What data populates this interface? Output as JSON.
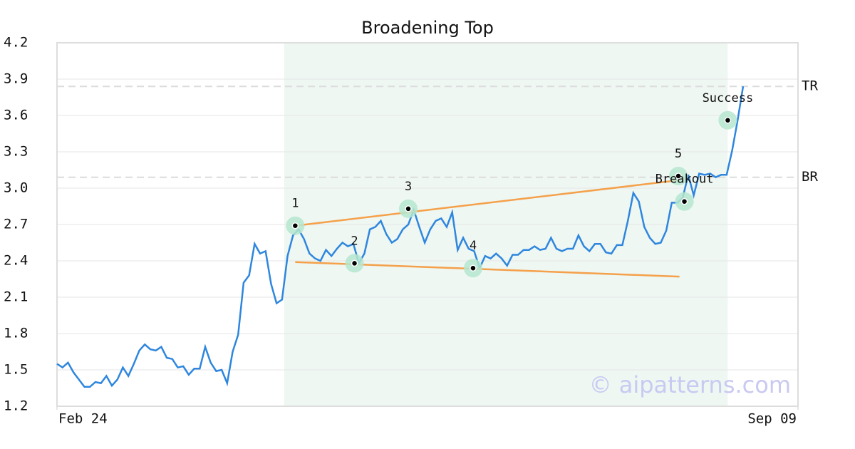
{
  "chart_data": {
    "type": "line",
    "title": "Broadening Top",
    "xlim": [
      0,
      135
    ],
    "xticks": [
      {
        "value": 0,
        "label": "Feb 24"
      },
      {
        "value": 135,
        "label": "Sep 09"
      }
    ],
    "ylim": [
      1.2,
      4.2
    ],
    "yticks": [
      {
        "value": 1.2,
        "label": "1.2"
      },
      1.5,
      1.8,
      2.1,
      2.4,
      2.7,
      {
        "value": 3.0,
        "label": "3.0"
      },
      3.3,
      3.6,
      3.9,
      4.2
    ],
    "grid": true,
    "series": [
      {
        "color": "#2e86de",
        "values": [
          1.55,
          1.52,
          1.56,
          1.48,
          1.42,
          1.36,
          1.36,
          1.4,
          1.39,
          1.45,
          1.37,
          1.42,
          1.52,
          1.45,
          1.55,
          1.66,
          1.71,
          1.67,
          1.66,
          1.69,
          1.6,
          1.59,
          1.52,
          1.53,
          1.46,
          1.51,
          1.51,
          1.69,
          1.56,
          1.49,
          1.5,
          1.39,
          1.65,
          1.79,
          2.22,
          2.28,
          2.54,
          2.46,
          2.48,
          2.21,
          2.05,
          2.08,
          2.44,
          2.61,
          2.66,
          2.58,
          2.46,
          2.42,
          2.4,
          2.49,
          2.44,
          2.5,
          2.55,
          2.52,
          2.54,
          2.38,
          2.46,
          2.66,
          2.68,
          2.73,
          2.62,
          2.55,
          2.58,
          2.66,
          2.7,
          2.82,
          2.68,
          2.55,
          2.66,
          2.73,
          2.75,
          2.68,
          2.8,
          2.49,
          2.59,
          2.5,
          2.48,
          2.34,
          2.44,
          2.42,
          2.46,
          2.42,
          2.36,
          2.45,
          2.45,
          2.49,
          2.49,
          2.52,
          2.49,
          2.5,
          2.59,
          2.5,
          2.48,
          2.5,
          2.5,
          2.61,
          2.52,
          2.48,
          2.54,
          2.54,
          2.47,
          2.46,
          2.53,
          2.53,
          2.73,
          2.96,
          2.89,
          2.68,
          2.59,
          2.54,
          2.55,
          2.65,
          2.88,
          2.88,
          2.92,
          3.11,
          2.94,
          3.12,
          3.11,
          3.12,
          3.09,
          3.11,
          3.11,
          3.31,
          3.56,
          3.84
        ]
      }
    ],
    "pattern_range": [
      41.4,
      122.2
    ],
    "levels": [
      {
        "label": "TR",
        "value": 3.84
      },
      {
        "label": "BR",
        "value": 3.09
      }
    ],
    "trend_lines": [
      {
        "color": "#f5a04a",
        "x": [
          43.4,
          113.2
        ],
        "y": [
          2.69,
          3.065
        ]
      },
      {
        "color": "#f5a04a",
        "x": [
          43.4,
          113.4
        ],
        "y": [
          2.39,
          2.27
        ]
      }
    ],
    "points": [
      {
        "label": "1",
        "x": 43.4,
        "y": 2.69
      },
      {
        "label": "2",
        "x": 54.2,
        "y": 2.38
      },
      {
        "label": "3",
        "x": 64.0,
        "y": 2.83
      },
      {
        "label": "4",
        "x": 75.8,
        "y": 2.34
      },
      {
        "label": "5",
        "x": 113.2,
        "y": 3.1
      },
      {
        "label": "Breakout",
        "x": 114.3,
        "y": 2.89
      },
      {
        "label": "Success",
        "x": 122.2,
        "y": 3.56
      }
    ],
    "watermark": "© aipatterns.com"
  }
}
